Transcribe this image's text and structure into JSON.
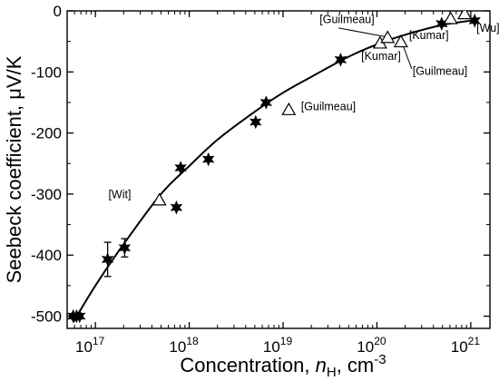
{
  "chart_data": {
    "type": "scatter",
    "xlabel": {
      "main": "Concentration, ",
      "italic": "n",
      "sub": "H",
      "rest": ", cm",
      "sup": "-3"
    },
    "ylabel": "Seebeck coefficient, μV/K",
    "x_scale": "log",
    "xlim": [
      5e+16,
      1.6e+21
    ],
    "ylim": [
      -520,
      0
    ],
    "x_ticks": [
      {
        "value": 1e+17,
        "base": "10",
        "exp": "17"
      },
      {
        "value": 1e+18,
        "base": "10",
        "exp": "18"
      },
      {
        "value": 1e+19,
        "base": "10",
        "exp": "19"
      },
      {
        "value": 1e+20,
        "base": "10",
        "exp": "20"
      },
      {
        "value": 1e+21,
        "base": "10",
        "exp": "21"
      }
    ],
    "y_ticks": [
      0,
      -100,
      -200,
      -300,
      -400,
      -500
    ],
    "series": [
      {
        "marker": "star",
        "points": [
          {
            "x": 5.8e+16,
            "y": -500
          },
          {
            "x": 6.3e+16,
            "y": -500
          },
          {
            "x": 6.8e+16,
            "y": -500
          },
          {
            "x": 1.35e+17,
            "y": -407,
            "err": 28
          },
          {
            "x": 2.05e+17,
            "y": -388,
            "err": 15
          },
          {
            "x": 7.3e+17,
            "y": -322
          },
          {
            "x": 8.1e+17,
            "y": -257
          },
          {
            "x": 1.6e+18,
            "y": -243
          },
          {
            "x": 5.1e+18,
            "y": -182
          },
          {
            "x": 6.6e+18,
            "y": -150
          },
          {
            "x": 4.1e+19,
            "y": -80
          },
          {
            "x": 4.9e+20,
            "y": -21
          },
          {
            "x": 1.1e+21,
            "y": -16
          }
        ]
      },
      {
        "marker": "triangle",
        "points": [
          {
            "x": 4.8e+17,
            "y": -310
          },
          {
            "x": 1.15e+19,
            "y": -162
          },
          {
            "x": 1.08e+20,
            "y": -53
          },
          {
            "x": 1.3e+20,
            "y": -44
          },
          {
            "x": 1.8e+20,
            "y": -51
          },
          {
            "x": 6.1e+20,
            "y": -13
          },
          {
            "x": 8.6e+20,
            "y": -5
          }
        ]
      }
    ],
    "fit_curve": [
      [
        5.8e+16,
        -510
      ],
      [
        1e+17,
        -450
      ],
      [
        2e+17,
        -382
      ],
      [
        5e+17,
        -300
      ],
      [
        1e+18,
        -254
      ],
      [
        2e+18,
        -211
      ],
      [
        5e+18,
        -165
      ],
      [
        1e+19,
        -134
      ],
      [
        2e+19,
        -108
      ],
      [
        5e+19,
        -75
      ],
      [
        1e+20,
        -55
      ],
      [
        2e+20,
        -39
      ],
      [
        5e+20,
        -23
      ],
      [
        1e+21,
        -16
      ],
      [
        1.15e+21,
        -14
      ]
    ],
    "annotations": [
      {
        "text": "[Wit]",
        "x": 2.4e+17,
        "y": -307,
        "anchor": "end"
      },
      {
        "text": "[Guilmeau]",
        "x": 1.55e+19,
        "y": -163,
        "anchor": "start"
      },
      {
        "text": "[Guilmeau]",
        "x": 4.8e+19,
        "y": -20,
        "anchor": "middle"
      },
      {
        "text": "[Kumar]",
        "x": 6.8e+19,
        "y": -80,
        "anchor": "start"
      },
      {
        "text": "[Kumar]",
        "x": 2.2e+20,
        "y": -46,
        "anchor": "start"
      },
      {
        "text": "[Guilmeau]",
        "x": 2.4e+20,
        "y": -105,
        "anchor": "start"
      },
      {
        "text": "[Wu]",
        "x": 1.15e+21,
        "y": -34,
        "anchor": "start"
      }
    ]
  }
}
